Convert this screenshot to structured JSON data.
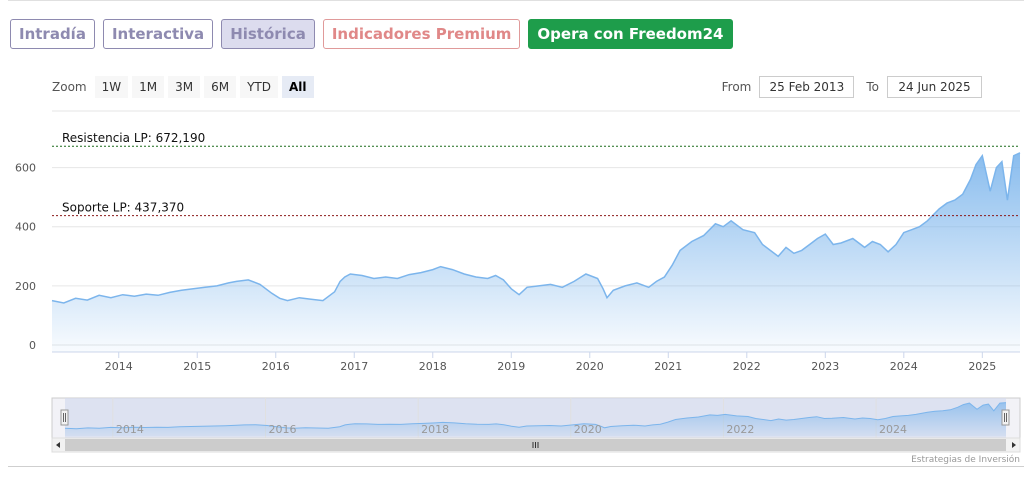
{
  "tabs": [
    {
      "label": "Intradía"
    },
    {
      "label": "Interactiva"
    },
    {
      "label": "Histórica"
    },
    {
      "label": "Indicadores Premium"
    },
    {
      "label": "Opera con Freedom24"
    }
  ],
  "zoom": {
    "label": "Zoom",
    "buttons": [
      "1W",
      "1M",
      "3M",
      "6M",
      "YTD",
      "All"
    ],
    "selected": "All"
  },
  "range": {
    "from_label": "From",
    "from_value": "25 Feb 2013",
    "to_label": "To",
    "to_value": "24 Jun 2025"
  },
  "credit": "Estrategias de Inversión",
  "colors": {
    "line": "#7cb5ec",
    "resistance": "#1b6b1b",
    "support": "#8b1a1a",
    "tab_border": "#8e8ab0",
    "premium": "#e08888",
    "cta": "#1e9d4b"
  },
  "chart_data": {
    "type": "area",
    "title": "",
    "xlabel": "",
    "ylabel": "",
    "xlim": [
      2013.15,
      2025.48
    ],
    "ylim": [
      0,
      700
    ],
    "yticks": [
      0,
      200,
      400,
      600
    ],
    "xticks": [
      "2014",
      "2015",
      "2016",
      "2017",
      "2018",
      "2019",
      "2020",
      "2021",
      "2022",
      "2023",
      "2024",
      "2025"
    ],
    "navigator_ticks": [
      "2014",
      "2016",
      "2018",
      "2020",
      "2022",
      "2024"
    ],
    "grid": true,
    "legend": "none",
    "reference_lines": [
      {
        "label": "Resistencia LP: 672,190",
        "value": 672.19
      },
      {
        "label": "Soporte LP: 437,370",
        "value": 437.37
      }
    ],
    "series": [
      {
        "x": [
          2013.15,
          2013.3,
          2013.45,
          2013.6,
          2013.75,
          2013.9,
          2014.05,
          2014.2,
          2014.35,
          2014.5,
          2014.65,
          2014.8,
          2014.95,
          2015.1,
          2015.25,
          2015.4,
          2015.5,
          2015.65,
          2015.8,
          2015.95,
          2016.05,
          2016.15,
          2016.3,
          2016.45,
          2016.6,
          2016.75,
          2016.82,
          2016.88,
          2016.95,
          2017.1,
          2017.25,
          2017.4,
          2017.55,
          2017.7,
          2017.85,
          2018.0,
          2018.1,
          2018.25,
          2018.4,
          2018.55,
          2018.7,
          2018.8,
          2018.9,
          2019.0,
          2019.1,
          2019.2,
          2019.35,
          2019.5,
          2019.65,
          2019.8,
          2019.95,
          2020.1,
          2020.17,
          2020.22,
          2020.3,
          2020.45,
          2020.6,
          2020.75,
          2020.85,
          2020.95,
          2021.05,
          2021.15,
          2021.3,
          2021.45,
          2021.6,
          2021.7,
          2021.8,
          2021.95,
          2022.1,
          2022.2,
          2022.3,
          2022.4,
          2022.5,
          2022.6,
          2022.7,
          2022.8,
          2022.9,
          2023.0,
          2023.1,
          2023.2,
          2023.35,
          2023.5,
          2023.6,
          2023.7,
          2023.8,
          2023.9,
          2024.0,
          2024.1,
          2024.2,
          2024.3,
          2024.45,
          2024.55,
          2024.65,
          2024.75,
          2024.85,
          2024.92,
          2025.0,
          2025.1,
          2025.18,
          2025.25,
          2025.32,
          2025.4,
          2025.48
        ],
        "values": [
          150,
          142,
          158,
          152,
          168,
          160,
          170,
          165,
          172,
          168,
          178,
          185,
          190,
          195,
          200,
          210,
          215,
          220,
          205,
          175,
          158,
          150,
          160,
          155,
          150,
          180,
          215,
          230,
          240,
          235,
          225,
          230,
          225,
          238,
          245,
          255,
          265,
          255,
          240,
          230,
          225,
          235,
          220,
          190,
          170,
          195,
          200,
          205,
          195,
          215,
          240,
          225,
          190,
          160,
          185,
          200,
          210,
          195,
          215,
          230,
          270,
          320,
          350,
          370,
          410,
          400,
          420,
          390,
          380,
          340,
          320,
          300,
          330,
          310,
          320,
          340,
          360,
          375,
          340,
          345,
          360,
          330,
          350,
          340,
          315,
          340,
          380,
          390,
          400,
          420,
          460,
          480,
          490,
          510,
          560,
          610,
          640,
          520,
          600,
          620,
          490,
          640,
          650
        ]
      }
    ]
  }
}
